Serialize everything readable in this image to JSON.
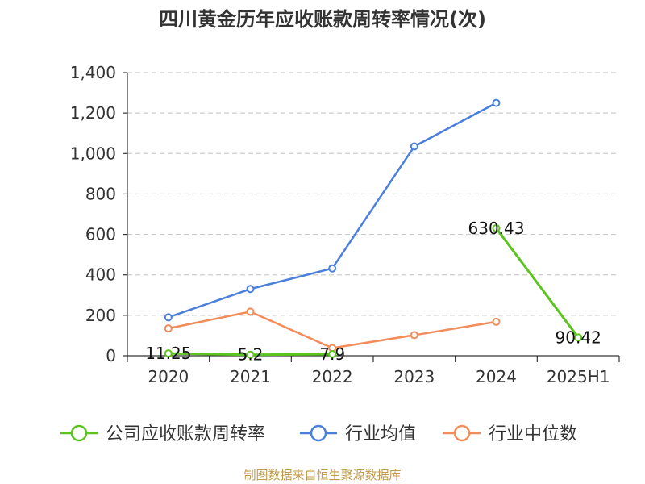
{
  "chart_data": {
    "type": "line",
    "title": "四川黄金历年应收账款周转率情况(次)",
    "categories": [
      "2020",
      "2021",
      "2022",
      "2023",
      "2024",
      "2025H1"
    ],
    "ylim": [
      0,
      1400
    ],
    "yticks": [
      0,
      200,
      400,
      600,
      800,
      1000,
      1200,
      1400
    ],
    "ytick_labels": [
      "0",
      "200",
      "400",
      "600",
      "800",
      "1,000",
      "1,200",
      "1,400"
    ],
    "grid": true,
    "legend_position": "bottom",
    "series": [
      {
        "name": "公司应收账款周转率",
        "color": "#5cc41e",
        "values": [
          11.25,
          5.2,
          7.9,
          null,
          630.43,
          90.42
        ],
        "labels": [
          "11.25",
          "5.2",
          "7.9",
          null,
          "630.43",
          "90.42"
        ]
      },
      {
        "name": "行业均值",
        "color": "#4a7fdc",
        "values": [
          190,
          330,
          432,
          1035,
          1250,
          null
        ]
      },
      {
        "name": "行业中位数",
        "color": "#f38c5a",
        "values": [
          135,
          218,
          38,
          102,
          168,
          null
        ]
      }
    ]
  },
  "source": "制图数据来自恒生聚源数据库",
  "colors": {
    "axis": "#333333",
    "grid": "#cccccc",
    "source_text": "#c09a4a"
  }
}
